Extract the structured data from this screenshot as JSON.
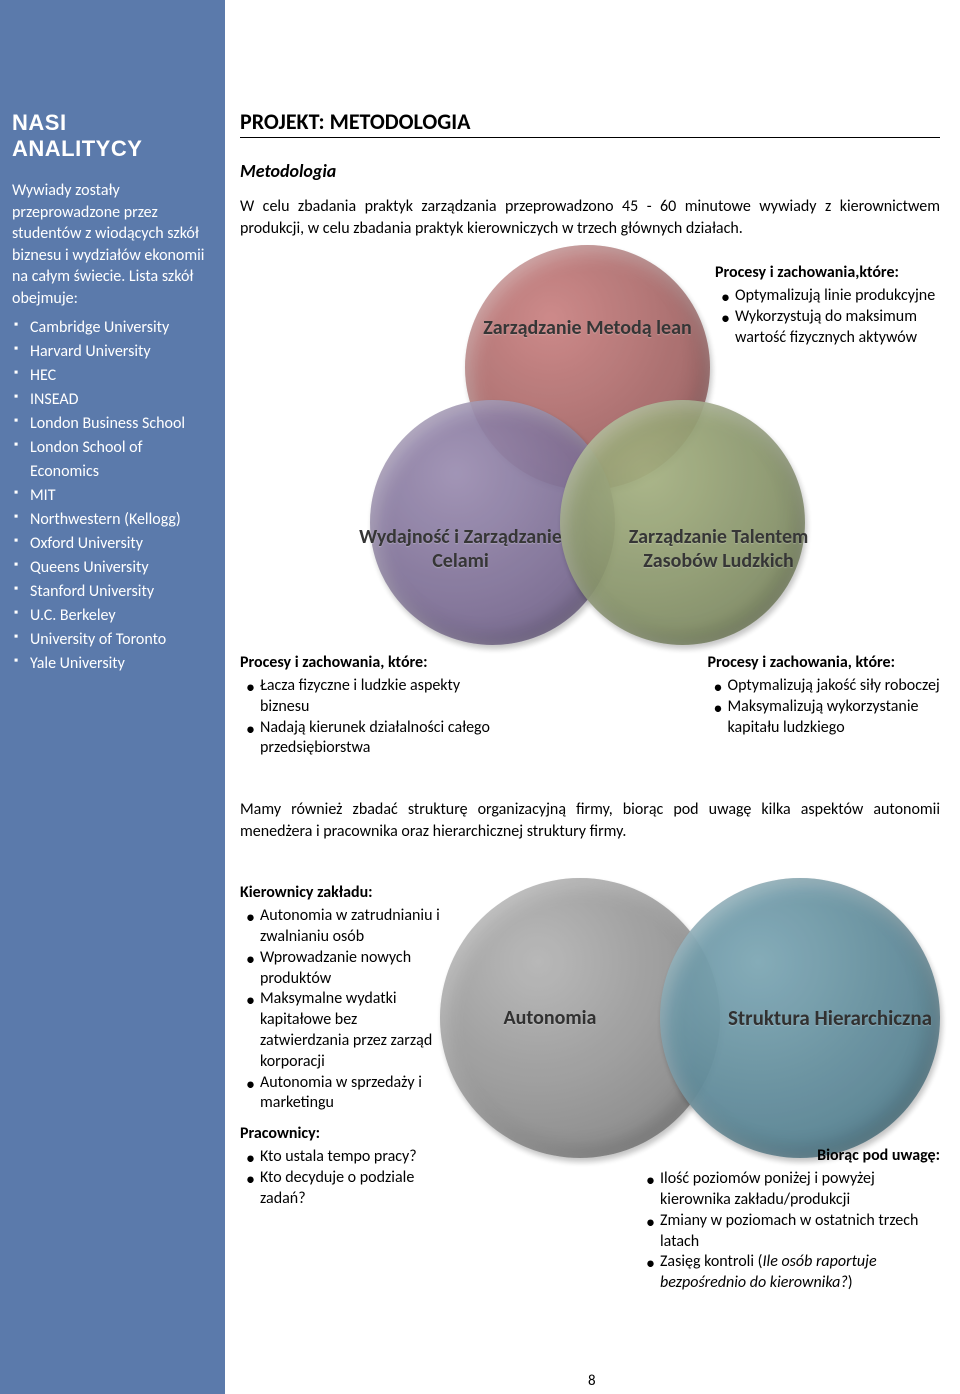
{
  "sidebar": {
    "title_line1": "NASI",
    "title_line2": "ANALITYCY",
    "intro": "Wywiady zostały przeprowadzone przez studentów z wiodących szkół biznesu i wydziałów ekonomii  na całym świecie. Lista szkół obejmuje:",
    "schools": [
      "Cambridge University",
      "Harvard University",
      "HEC",
      "INSEAD",
      "London Business School",
      "London School of Economics",
      "MIT",
      "Northwestern (Kellogg)",
      "Oxford University",
      "Queens University",
      "Stanford University",
      "U.C. Berkeley",
      "University of Toronto",
      "Yale University"
    ]
  },
  "main_title": "PROJEKT: METODOLOGIA",
  "subheading": "Metodologia",
  "intro_para": "W celu zbadania praktyk zarządzania przeprowadzono 45  - 60 minutowe wywiady z kierownictwem produkcji, w celu zbadania praktyk kierowniczych w trzech głównych działach.",
  "venn3": {
    "top": "Zarządzanie Metodą lean",
    "left": "Wydajność i Zarządzanie Celami",
    "right": "Zarządzanie Talentem Zasobów Ludzkich"
  },
  "annot_top_right": {
    "heading": "Procesy i zachowania,które:",
    "items": [
      "Optymalizują linie produkcyjne",
      "Wykorzystują do maksimum wartość fizycznych aktywów"
    ]
  },
  "annot_bottom_left": {
    "heading": "Procesy i zachowania, które:",
    "items": [
      "Łacza fizyczne i ludzkie aspekty biznesu",
      "Nadają kierunek działalności całego przedsiębiorstwa"
    ]
  },
  "annot_bottom_right": {
    "heading": "Procesy i zachowania, które:",
    "items": [
      "Optymalizują jakość siły roboczej",
      "Maksymalizują wykorzystanie kapitału ludzkiego"
    ]
  },
  "para2": "Mamy również     zbadać strukturę    organizacyjną firmy,     biorąc     pod     uwagę kilka aspektów autonomii menedżera i pracownika oraz hierarchicznej struktury firmy.",
  "venn2": {
    "left": "Autonomia",
    "right": "Struktura Hierarchiczna"
  },
  "left_block": {
    "h1": "Kierownicy zakładu:",
    "items1": [
      "Autonomia w zatrudnianiu i zwalnianiu osób",
      "Wprowadzanie nowych produktów",
      "Maksymalne wydatki kapitałowe bez zatwierdzania przez zarząd korporacji",
      "Autonomia w sprzedaży i marketingu"
    ],
    "h2": "Pracownicy:",
    "items2": [
      "Kto ustala tempo pracy?",
      "Kto decyduje o podziale zadań?"
    ]
  },
  "right_block": {
    "heading": "Biorąc pod uwagę:",
    "items": [
      "Ilość poziomów poniżej i powyżej kierownika zakładu/produkcji",
      "Zmiany w poziomach w ostatnich trzech latach",
      "Zasięg kontroli (Ile osób raportuje bezpośrednio do kierownika?)"
    ]
  },
  "page_number": "8",
  "colors": {
    "sidebar_bg": "#5b7aab",
    "circle_red": "#a86666",
    "circle_purple": "#7c6d96",
    "circle_green": "#8a9668",
    "circle_grey": "#969696",
    "circle_teal": "#628e9c"
  }
}
